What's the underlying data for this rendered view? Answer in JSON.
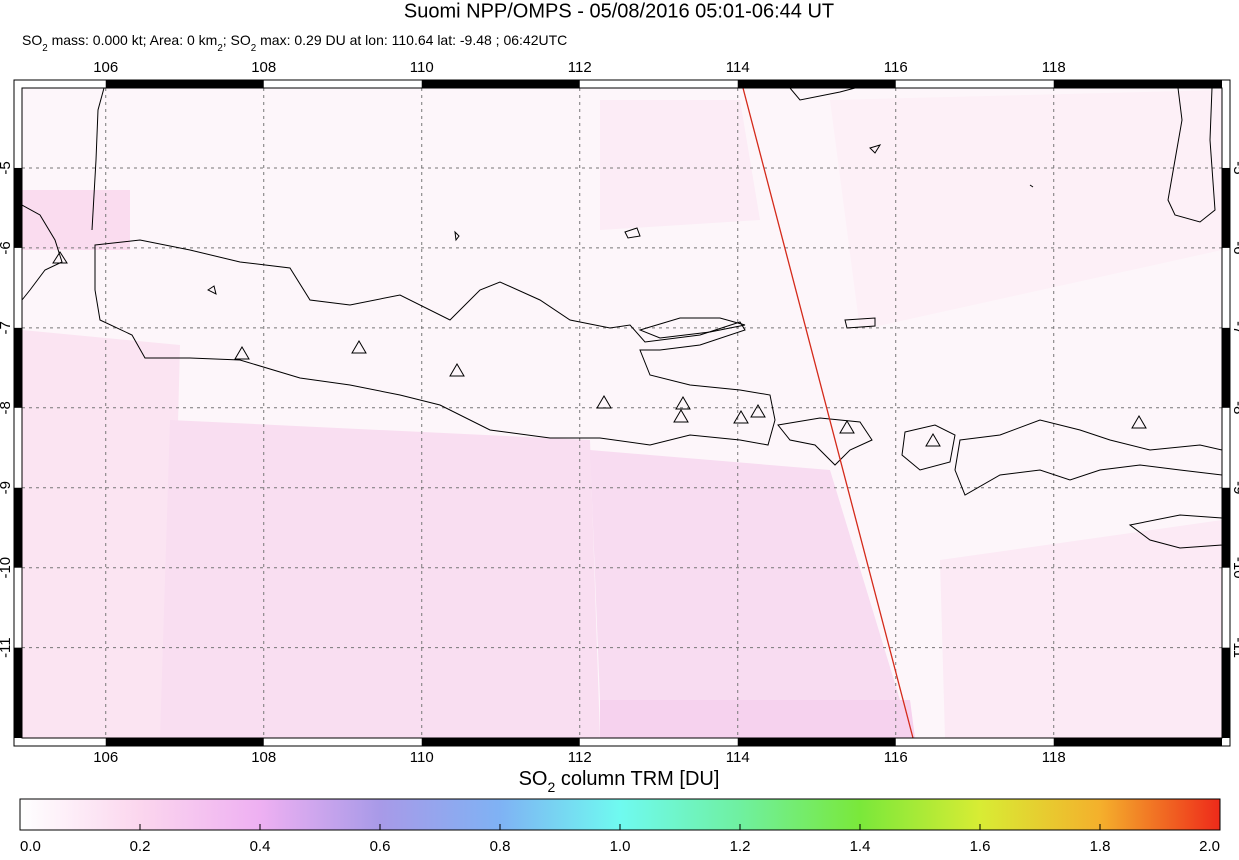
{
  "header": {
    "title": "Suomi NPP/OMPS - 05/08/2016 05:01-06:44 UT",
    "subtitle": [
      "SO",
      "2",
      " mass: 0.000 kt; Area: 0 km",
      "2",
      "; SO",
      "2",
      " max: 0.29 DU at lon: 110.64 lat: -9.48 ; 06:42UTC"
    ]
  },
  "map": {
    "lonlim": [
      104.94,
      120.13
    ],
    "latlim": [
      -4.0,
      -12.13
    ],
    "lon_ticks": [
      106,
      108,
      110,
      112,
      114,
      116,
      118
    ],
    "lat_ticks": [
      -5,
      -6,
      -7,
      -8,
      -9,
      -10,
      -11
    ]
  },
  "colorbar": {
    "title": [
      "SO",
      "2",
      " column TRM [DU]"
    ],
    "lim": [
      0,
      2
    ],
    "ticks": [
      {
        "value": 0,
        "label": "0.0"
      },
      {
        "value": 0.2,
        "label": "0.2"
      },
      {
        "value": 0.4,
        "label": "0.4"
      },
      {
        "value": 0.6,
        "label": "0.6"
      },
      {
        "value": 0.8,
        "label": "0.8"
      },
      {
        "value": 1,
        "label": "1.0"
      },
      {
        "value": 1.2,
        "label": "1.2"
      },
      {
        "value": 1.4,
        "label": "1.4"
      },
      {
        "value": 1.6,
        "label": "1.6"
      },
      {
        "value": 1.8,
        "label": "1.8"
      },
      {
        "value": 2,
        "label": "2.0"
      }
    ]
  }
}
